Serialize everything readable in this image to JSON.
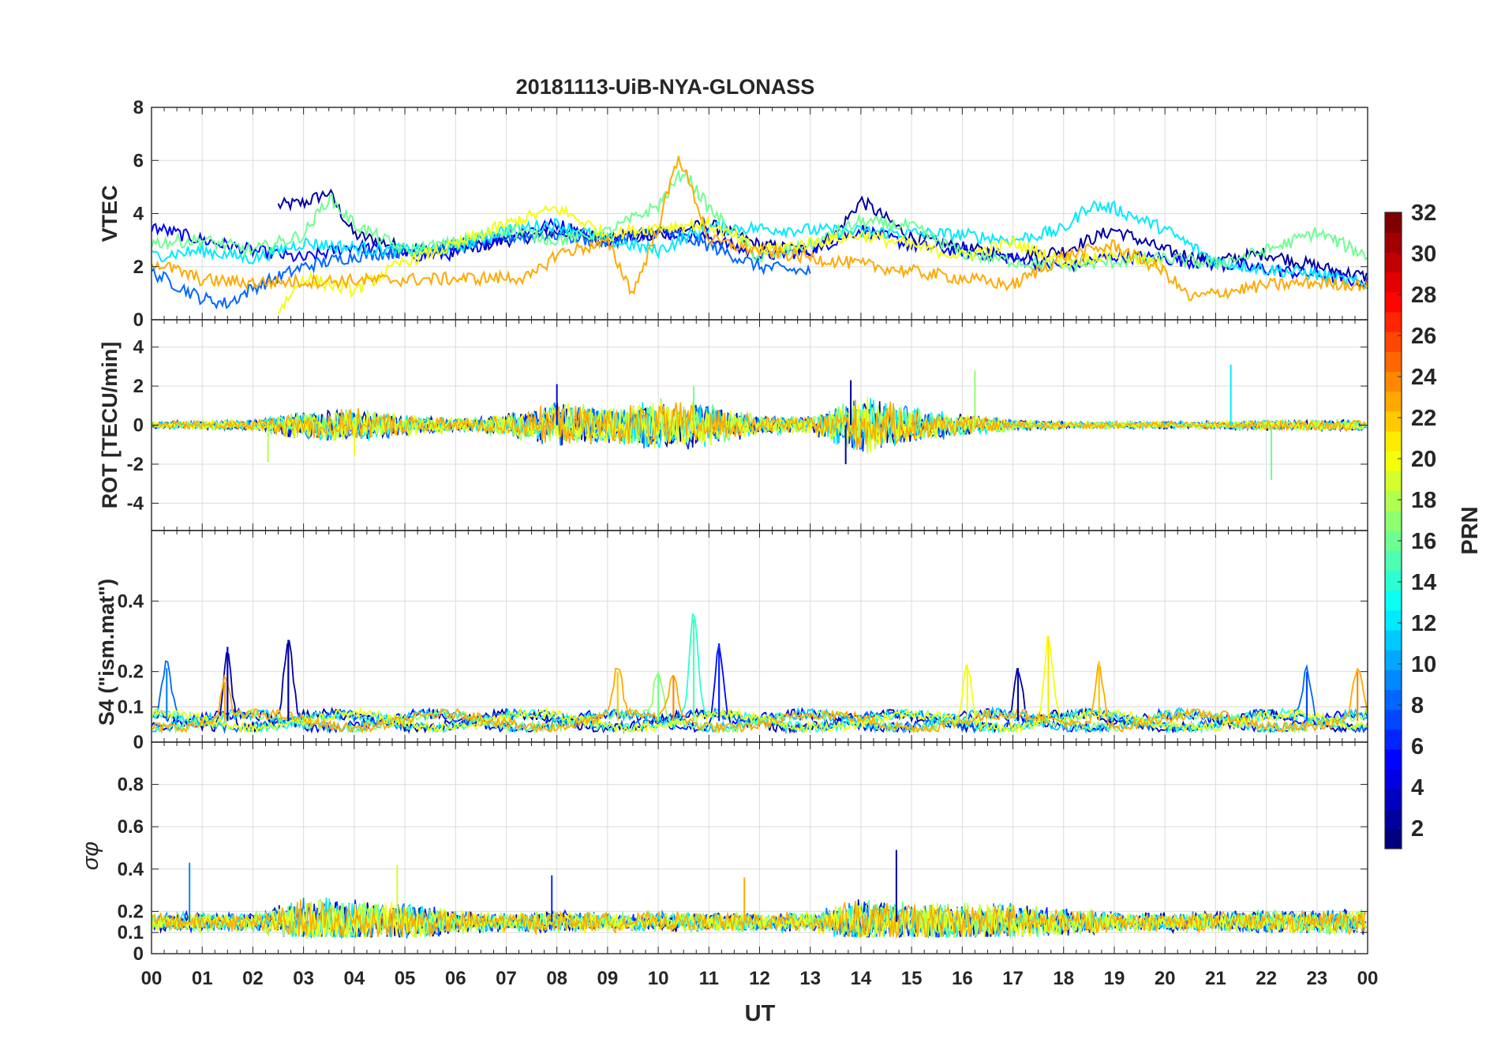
{
  "chart_data": {
    "type": "line",
    "title": "20181113-UiB-NYA-GLONASS",
    "xlabel": "UT",
    "xlim": [
      0,
      24
    ],
    "x_ticks": [
      0,
      1,
      2,
      3,
      4,
      5,
      6,
      7,
      8,
      9,
      10,
      11,
      12,
      13,
      14,
      15,
      16,
      17,
      18,
      19,
      20,
      21,
      22,
      23,
      24
    ],
    "x_tick_labels": [
      "00",
      "01",
      "02",
      "03",
      "04",
      "05",
      "06",
      "07",
      "08",
      "09",
      "10",
      "11",
      "12",
      "13",
      "14",
      "15",
      "16",
      "17",
      "18",
      "19",
      "20",
      "21",
      "22",
      "23",
      "00"
    ],
    "panels": [
      {
        "name": "vtec",
        "ylabel": "VTEC",
        "ylim": [
          0,
          8
        ],
        "y_ticks": [
          0,
          2,
          4,
          6,
          8
        ],
        "y_tick_labels": [
          "0",
          "2",
          "4",
          "6",
          "8"
        ],
        "series": [
          {
            "prn": 2,
            "x": [
              2.5,
              3,
              3.5,
              4,
              5,
              6,
              7,
              8,
              9,
              10,
              11,
              12,
              13,
              13.5,
              14,
              14.5,
              15,
              16,
              17,
              18,
              19,
              20,
              21,
              22,
              23,
              24
            ],
            "y": [
              4.3,
              4.4,
              4.8,
              3.2,
              2.7,
              2.6,
              3.0,
              3.3,
              3.1,
              3.2,
              3.6,
              2.8,
              2.6,
              3.2,
              4.5,
              3.8,
              3.1,
              2.7,
              2.4,
              2.6,
              3.4,
              2.6,
              2.2,
              2.5,
              2.0,
              1.6
            ]
          },
          {
            "prn": 5,
            "x": [
              0,
              1,
              2,
              3,
              4,
              5,
              6,
              7,
              8,
              9,
              10,
              11,
              12,
              13,
              14,
              15,
              16,
              17,
              18,
              19,
              20,
              21,
              22,
              23,
              24
            ],
            "y": [
              3.5,
              3.0,
              2.6,
              2.3,
              2.8,
              2.4,
              2.5,
              3.2,
              3.6,
              3.0,
              3.3,
              3.1,
              2.4,
              2.6,
              3.4,
              2.8,
              2.6,
              2.3,
              2.0,
              2.4,
              2.3,
              2.1,
              1.9,
              1.7,
              1.4
            ]
          },
          {
            "prn": 8,
            "x": [
              0,
              0.5,
              1,
              1.5,
              2,
              3,
              4,
              5,
              6,
              7,
              8,
              9,
              10,
              11,
              12,
              13
            ],
            "y": [
              1.8,
              1.3,
              0.8,
              0.6,
              1.2,
              2.0,
              2.4,
              2.6,
              2.8,
              3.1,
              3.2,
              2.9,
              3.4,
              2.8,
              2.0,
              1.8
            ]
          },
          {
            "prn": 12,
            "x": [
              0,
              1,
              2,
              3,
              4,
              5,
              6,
              7,
              8,
              9,
              10,
              11,
              16,
              17,
              18,
              18.5,
              19,
              20,
              21,
              22,
              23,
              24
            ],
            "y": [
              2.4,
              2.6,
              2.3,
              2.9,
              2.7,
              2.6,
              2.7,
              3.4,
              3.6,
              3.0,
              2.6,
              3.5,
              3.2,
              3.0,
              3.4,
              4.3,
              4.2,
              3.4,
              2.2,
              1.9,
              1.7,
              1.3
            ]
          },
          {
            "prn": 16,
            "x": [
              0,
              1,
              2,
              3,
              3.5,
              4,
              5,
              6,
              7,
              8,
              9,
              10,
              10.5,
              11,
              12,
              13,
              14,
              15,
              16,
              17,
              18,
              19,
              20,
              21,
              22,
              23,
              24
            ],
            "y": [
              2.9,
              3.0,
              2.6,
              3.2,
              4.6,
              3.6,
              2.6,
              2.9,
              3.4,
              3.0,
              3.3,
              4.3,
              5.6,
              4.2,
              2.3,
              2.8,
              3.7,
              3.5,
              2.5,
              2.2,
              2.0,
              2.2,
              2.3,
              2.1,
              2.6,
              3.3,
              2.4
            ]
          },
          {
            "prn": 20,
            "x": [
              2.5,
              3,
              4,
              5,
              6,
              7,
              8,
              9,
              10,
              11,
              12,
              13,
              14,
              15,
              16,
              17,
              18,
              19,
              20
            ],
            "y": [
              0.3,
              1.6,
              1.1,
              2.2,
              2.8,
              3.6,
              4.2,
              3.2,
              3.5,
              3.6,
              2.6,
              2.9,
              3.2,
              2.8,
              2.4,
              2.9,
              2.2,
              2.5,
              2.0
            ]
          },
          {
            "prn": 23,
            "x": [
              0,
              1,
              2,
              7.5,
              8,
              9,
              9.5,
              10,
              10.4,
              10.8,
              11,
              12,
              17,
              18,
              19,
              20,
              20.5,
              21,
              22,
              23,
              24
            ],
            "y": [
              2.2,
              1.5,
              1.4,
              1.6,
              2.5,
              2.9,
              1.0,
              3.5,
              6.2,
              4.2,
              3.0,
              2.6,
              1.3,
              2.4,
              2.8,
              1.8,
              0.8,
              1.0,
              1.3,
              1.4,
              1.3
            ]
          }
        ]
      },
      {
        "name": "rot",
        "ylabel": "ROT [TECU/min]",
        "ylim": [
          -5.4,
          5.4
        ],
        "y_ticks": [
          -4,
          -2,
          0,
          2,
          4
        ],
        "y_tick_labels": [
          "-4",
          "-2",
          "0",
          "2",
          "4"
        ],
        "series_desc": "all PRNs overplotted, noise about 0 with bursts",
        "envelope": {
          "hours": [
            0,
            2,
            3,
            4,
            5,
            6,
            7,
            8,
            9,
            10,
            11,
            12,
            13,
            14,
            15,
            16,
            17,
            18,
            19,
            20,
            21,
            22,
            23,
            24
          ],
          "amplitude": [
            0.2,
            0.3,
            0.8,
            0.9,
            0.6,
            0.4,
            0.6,
            1.2,
            1.0,
            1.4,
            1.2,
            0.5,
            0.5,
            1.6,
            1.0,
            0.6,
            0.3,
            0.2,
            0.2,
            0.2,
            0.2,
            0.3,
            0.3,
            0.3
          ]
        },
        "spikes": [
          {
            "x": 16.25,
            "y": 2.8,
            "prn": 17
          },
          {
            "x": 21.3,
            "y": 3.1,
            "prn": 12
          },
          {
            "x": 22.1,
            "y": -2.8,
            "prn": 16
          },
          {
            "x": 13.8,
            "y": 2.3,
            "prn": 2
          },
          {
            "x": 13.7,
            "y": -2.0,
            "prn": 2
          },
          {
            "x": 10.7,
            "y": 2.0,
            "prn": 16
          },
          {
            "x": 8.0,
            "y": 2.1,
            "prn": 4
          },
          {
            "x": 2.3,
            "y": -1.9,
            "prn": 18
          },
          {
            "x": 4.0,
            "y": -1.6,
            "prn": 20
          }
        ]
      },
      {
        "name": "s4",
        "ylabel": "S4 (\"ism.mat\")",
        "ylim": [
          0,
          0.6
        ],
        "y_ticks": [
          0,
          0.1,
          0.2,
          0.4
        ],
        "y_tick_labels": [
          "0",
          "0.1",
          "0.2",
          "0.4"
        ],
        "baseline": 0.06,
        "peaks": [
          {
            "x": 0.3,
            "y": 0.21,
            "prn": 9
          },
          {
            "x": 1.5,
            "y": 0.27,
            "prn": 3
          },
          {
            "x": 1.45,
            "y": 0.17,
            "prn": 23
          },
          {
            "x": 2.7,
            "y": 0.29,
            "prn": 2
          },
          {
            "x": 9.2,
            "y": 0.2,
            "prn": 22
          },
          {
            "x": 10.0,
            "y": 0.19,
            "prn": 16
          },
          {
            "x": 10.3,
            "y": 0.19,
            "prn": 24
          },
          {
            "x": 10.7,
            "y": 0.35,
            "prn": 15
          },
          {
            "x": 11.2,
            "y": 0.28,
            "prn": 6
          },
          {
            "x": 16.1,
            "y": 0.22,
            "prn": 20
          },
          {
            "x": 17.1,
            "y": 0.21,
            "prn": 3
          },
          {
            "x": 17.7,
            "y": 0.3,
            "prn": 21
          },
          {
            "x": 18.7,
            "y": 0.23,
            "prn": 22
          },
          {
            "x": 22.8,
            "y": 0.2,
            "prn": 7
          },
          {
            "x": 23.8,
            "y": 0.2,
            "prn": 24
          }
        ]
      },
      {
        "name": "sigma_phi",
        "ylabel": "σφ",
        "ylim": [
          0,
          1
        ],
        "y_ticks": [
          0,
          0.1,
          0.2,
          0.4,
          0.6,
          0.8
        ],
        "y_tick_labels": [
          "0",
          "0.1",
          "0.2",
          "0.4",
          "0.6",
          "0.8"
        ],
        "baseline": 0.15,
        "envelope": {
          "hours": [
            0,
            2,
            3,
            4,
            5,
            6,
            7,
            8,
            9,
            10,
            11,
            12,
            13,
            14,
            15,
            16,
            17,
            18,
            19,
            20,
            21,
            22,
            23,
            24
          ],
          "amplitude": [
            0.05,
            0.05,
            0.12,
            0.12,
            0.1,
            0.06,
            0.05,
            0.06,
            0.05,
            0.05,
            0.05,
            0.05,
            0.05,
            0.12,
            0.1,
            0.1,
            0.09,
            0.07,
            0.05,
            0.05,
            0.05,
            0.06,
            0.06,
            0.07
          ]
        },
        "spikes": [
          {
            "x": 0.75,
            "y": 0.43,
            "prn": 9
          },
          {
            "x": 4.85,
            "y": 0.42,
            "prn": 19
          },
          {
            "x": 7.9,
            "y": 0.37,
            "prn": 6
          },
          {
            "x": 14.7,
            "y": 0.49,
            "prn": 2
          },
          {
            "x": 11.7,
            "y": 0.36,
            "prn": 23
          }
        ]
      }
    ],
    "colorbar": {
      "label": "PRN",
      "clim": [
        1,
        32
      ],
      "levels": 32,
      "colormap": "jet",
      "ticks": [
        2,
        4,
        6,
        8,
        10,
        12,
        14,
        16,
        18,
        20,
        22,
        24,
        26,
        28,
        30,
        32
      ],
      "tick_labels": [
        "2",
        "4",
        "6",
        "8",
        "10",
        "12",
        "14",
        "16",
        "18",
        "20",
        "22",
        "24",
        "26",
        "28",
        "30",
        "32"
      ]
    }
  }
}
